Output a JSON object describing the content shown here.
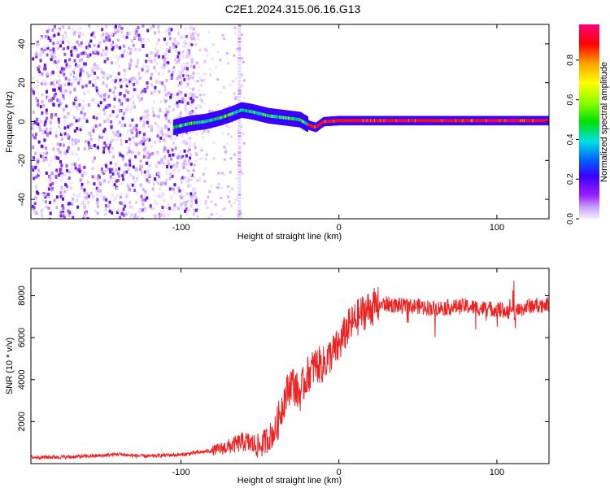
{
  "title": "C2E1.2024.315.06.16.G13",
  "chart_data": [
    {
      "type": "heatmap",
      "xlabel": "Height of straight line (km)",
      "ylabel": "Frequency (Hz)",
      "xlim": [
        -195,
        133
      ],
      "ylim": [
        -50,
        50
      ],
      "xticks": [
        -100,
        0,
        100
      ],
      "yticks": [
        -40,
        -20,
        0,
        20,
        40
      ],
      "colorbar": {
        "label": "Normalized spectral amplitude",
        "range": [
          0,
          0.98
        ],
        "ticks": [
          "0.0",
          "0.2",
          "0.4",
          "0.6",
          "0.8"
        ],
        "tick_values": [
          0,
          0.2,
          0.4,
          0.6,
          0.8
        ],
        "colors": [
          "#f0f0ff",
          "#c8a0ff",
          "#9a20ff",
          "#3a00ff",
          "#0060ff",
          "#00e0e0",
          "#00e000",
          "#90ff00",
          "#ffff00",
          "#ffa000",
          "#ff0000",
          "#ff0080"
        ]
      },
      "ridge": {
        "x": [
          -105,
          -95,
          -85,
          -75,
          -68,
          -62,
          -55,
          -45,
          -35,
          -25,
          -19,
          -15,
          -10,
          0,
          50,
          100,
          133
        ],
        "y": [
          -3,
          -1,
          0,
          2,
          4,
          6,
          5,
          3,
          2,
          1,
          -2,
          -3,
          0,
          0.5,
          0.5,
          0.5,
          0.5
        ]
      },
      "noise_region_x": [
        -195,
        -100
      ],
      "vertical_streak_x": -63
    },
    {
      "type": "line",
      "xlabel": "Height of straight line (km)",
      "ylabel": "SNR (10 * v/v)",
      "xlim": [
        -195,
        133
      ],
      "ylim": [
        0,
        9300
      ],
      "xticks": [
        -100,
        0,
        100
      ],
      "yticks": [
        2000,
        4000,
        6000,
        8000
      ],
      "line_color": "#ee2222",
      "series": [
        {
          "x": [
            -195,
            -170,
            -150,
            -140,
            -130,
            -120,
            -110,
            -100,
            -90,
            -80,
            -70,
            -60,
            -50,
            -40,
            -35,
            -30,
            -25,
            -20,
            -15,
            -10,
            -5,
            0,
            5,
            10,
            15,
            20,
            25,
            30,
            40,
            50,
            60,
            70,
            80,
            90,
            100,
            105,
            110,
            120,
            133
          ],
          "y": [
            300,
            320,
            380,
            450,
            380,
            350,
            400,
            420,
            520,
            620,
            800,
            1050,
            800,
            1600,
            3000,
            3900,
            3300,
            4200,
            4700,
            4700,
            5200,
            5600,
            6400,
            6800,
            7200,
            7400,
            7550,
            7600,
            7500,
            7500,
            7400,
            7450,
            7500,
            7400,
            7350,
            7300,
            7200,
            7500,
            7600
          ]
        }
      ]
    }
  ]
}
